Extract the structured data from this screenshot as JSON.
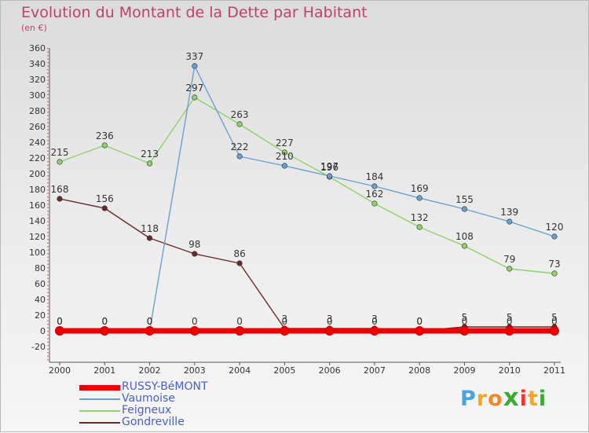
{
  "title": "Evolution du Montant de la Dette par Habitant",
  "subtitle": "(en €)",
  "brand": {
    "letters": [
      "P",
      "r",
      "o",
      "x",
      "i",
      "t",
      "i"
    ],
    "colors": [
      "#4aa3df",
      "#f5a623",
      "#f08a24",
      "#3aaa35",
      "#e53935",
      "#f5a623",
      "#3aaa35"
    ]
  },
  "chart_data": {
    "type": "line",
    "title": "Evolution du Montant de la Dette par Habitant",
    "subtitle": "(en €)",
    "xlabel": "",
    "ylabel": "",
    "ylim": [
      -20,
      360
    ],
    "ytick_step": 20,
    "grid": false,
    "legend_placement": "bottom-left",
    "x": [
      "2000",
      "2001",
      "2002",
      "2003",
      "2004",
      "2005",
      "2006",
      "2007",
      "2008",
      "2009",
      "2010",
      "2011"
    ],
    "series": [
      {
        "name": "RUSSY-BéMONT",
        "color": "#ee0000",
        "values": [
          0,
          0,
          0,
          0,
          0,
          0,
          0,
          0,
          0,
          0,
          0,
          0
        ],
        "labels": [
          "0",
          "0",
          "0",
          "0",
          "0",
          "0",
          "0",
          "0",
          "0",
          "0",
          "0",
          "0"
        ]
      },
      {
        "name": "Vaumoise",
        "color": "#6b9fd0",
        "values": [
          0,
          0,
          0,
          337,
          222,
          210,
          197,
          184,
          169,
          155,
          139,
          120
        ],
        "labels": [
          "0",
          "0",
          "0",
          "337",
          "222",
          "210",
          "197",
          "184",
          "169",
          "155",
          "139",
          "120"
        ]
      },
      {
        "name": "Feigneux",
        "color": "#8fd16a",
        "values": [
          215,
          236,
          213,
          297,
          263,
          227,
          196,
          162,
          132,
          108,
          79,
          73
        ],
        "labels": [
          "215",
          "236",
          "213",
          "297",
          "263",
          "227",
          "196",
          "162",
          "132",
          "108",
          "79",
          "73"
        ]
      },
      {
        "name": "Gondreville",
        "color": "#6b2a2a",
        "values": [
          168,
          156,
          118,
          98,
          86,
          3,
          3,
          3,
          0,
          5,
          5,
          5
        ],
        "labels": [
          "168",
          "156",
          "118",
          "98",
          "86",
          "3",
          "3",
          "3",
          "0",
          "5",
          "5",
          "5"
        ]
      }
    ]
  }
}
